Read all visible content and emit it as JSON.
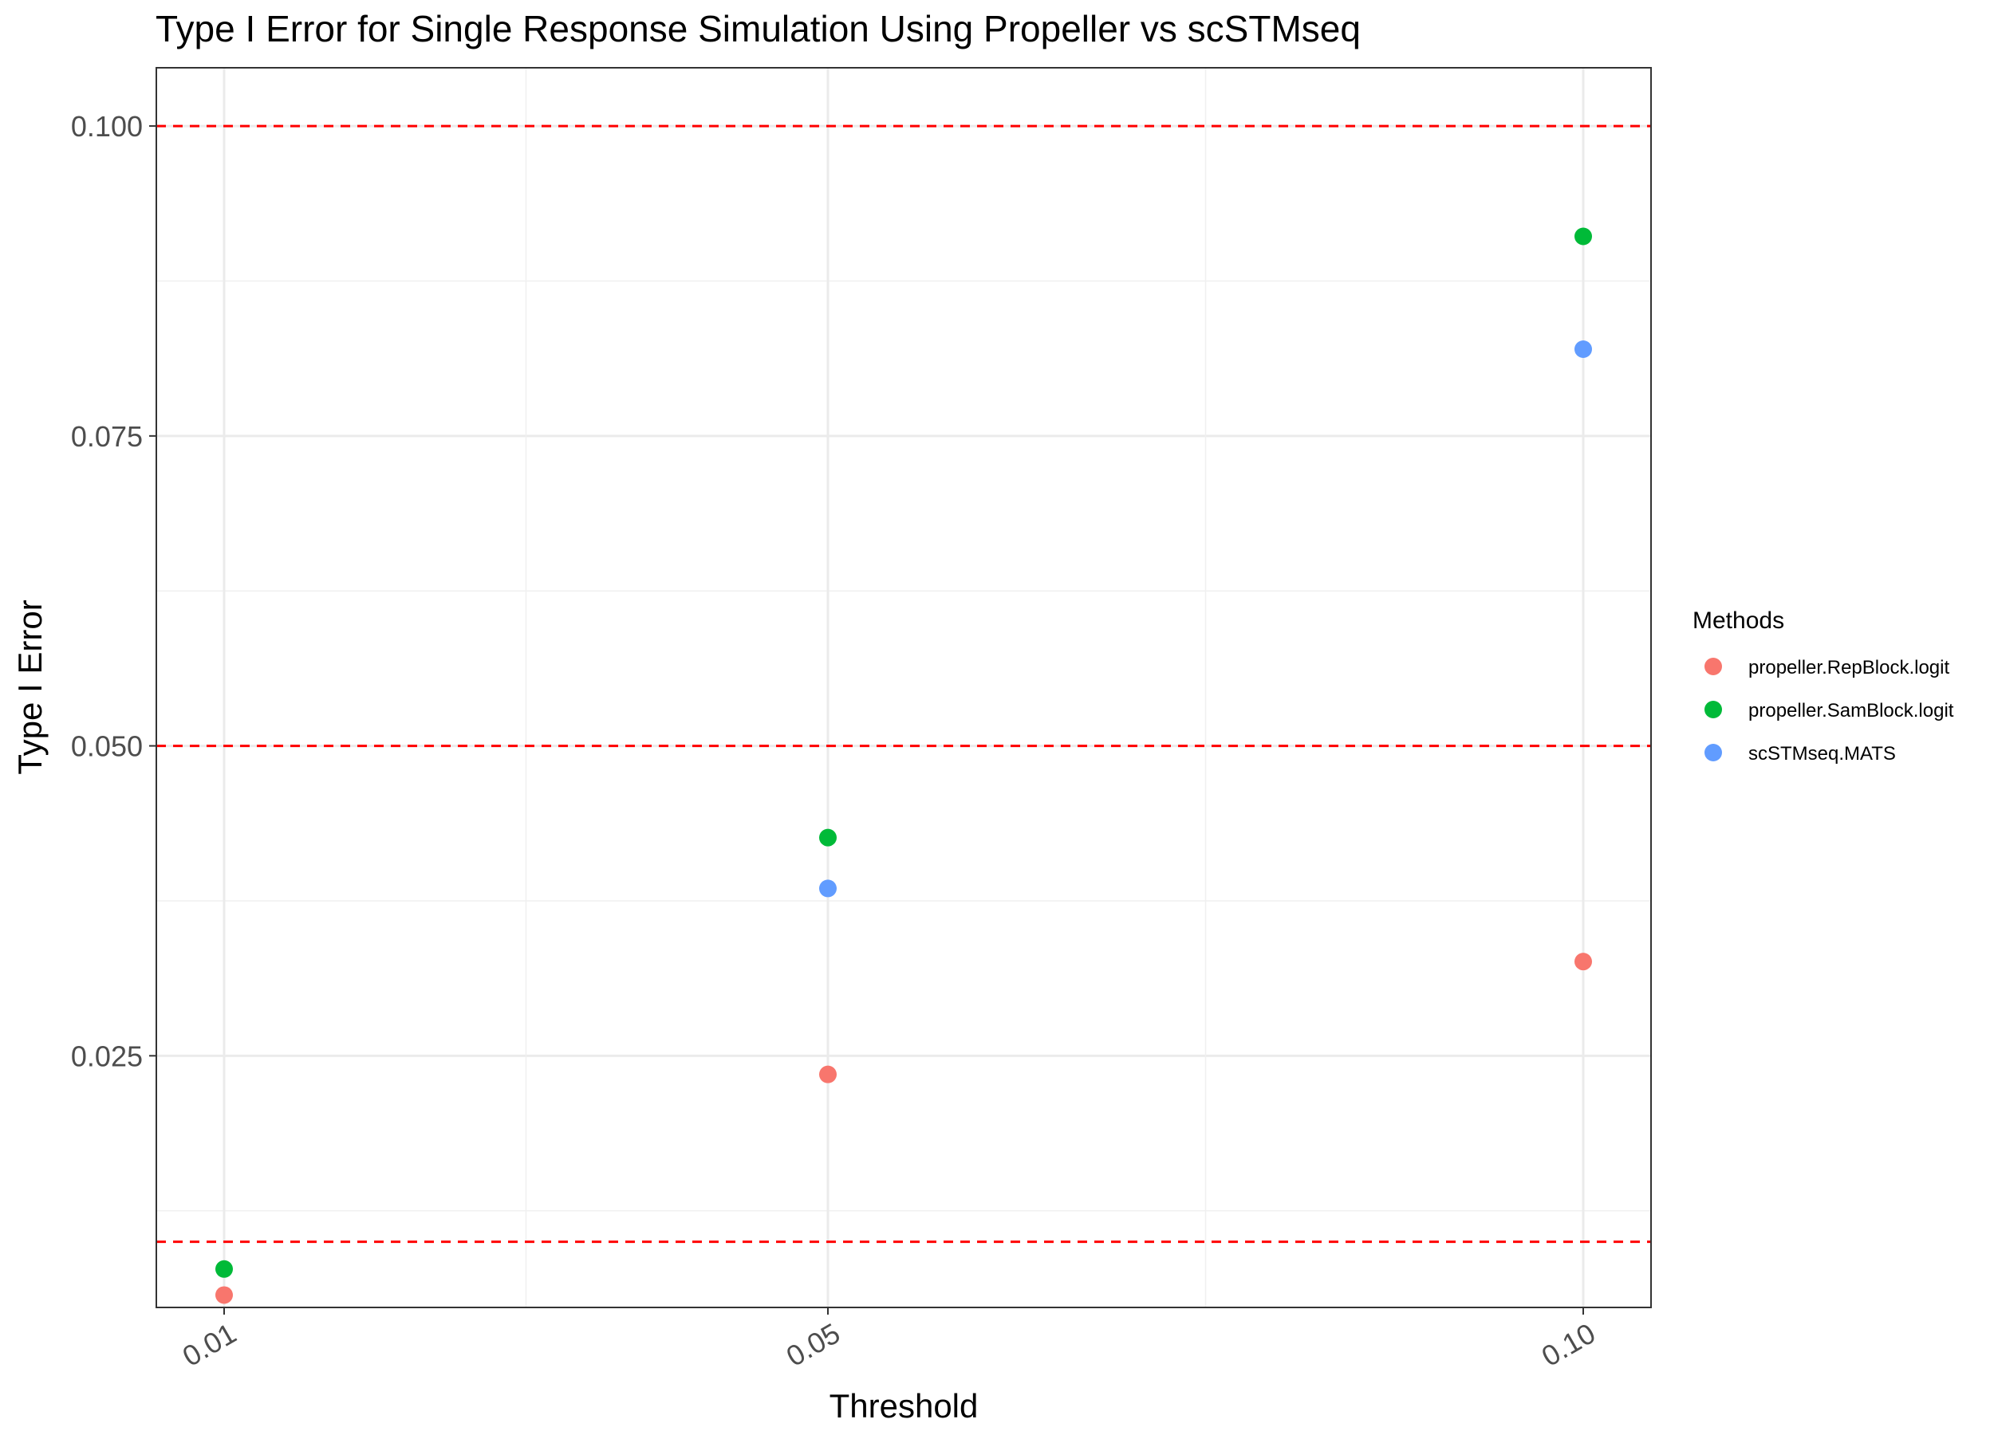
{
  "chart_data": {
    "type": "scatter",
    "title": "Type I Error for Single Response Simulation Using Propeller vs scSTMseq",
    "xlabel": "Threshold",
    "ylabel": "Type I Error",
    "x_categories": [
      "0.01",
      "0.05",
      "0.10"
    ],
    "y_ticks": [
      "0.025",
      "0.050",
      "0.075",
      "0.100"
    ],
    "ylim": [
      0.0047,
      0.1047
    ],
    "reference_lines": [
      0.01,
      0.05,
      0.1
    ],
    "reference_line_color": "#FF0000",
    "grid": true,
    "legend_position": "right",
    "legend_title": "Methods",
    "series": [
      {
        "name": "propeller.RepBlock.logit",
        "color": "#F8766D",
        "x": [
          "0.01",
          "0.05",
          "0.10"
        ],
        "y": [
          0.0057,
          0.0235,
          0.0326
        ]
      },
      {
        "name": "propeller.SamBlock.logit",
        "color": "#00BA38",
        "x": [
          "0.01",
          "0.05",
          "0.10"
        ],
        "y": [
          0.0078,
          0.0426,
          0.0911
        ]
      },
      {
        "name": "scSTMseq.MATS",
        "color": "#619CFF",
        "x": [
          "0.05",
          "0.10"
        ],
        "y": [
          0.0385,
          0.082
        ]
      }
    ]
  }
}
